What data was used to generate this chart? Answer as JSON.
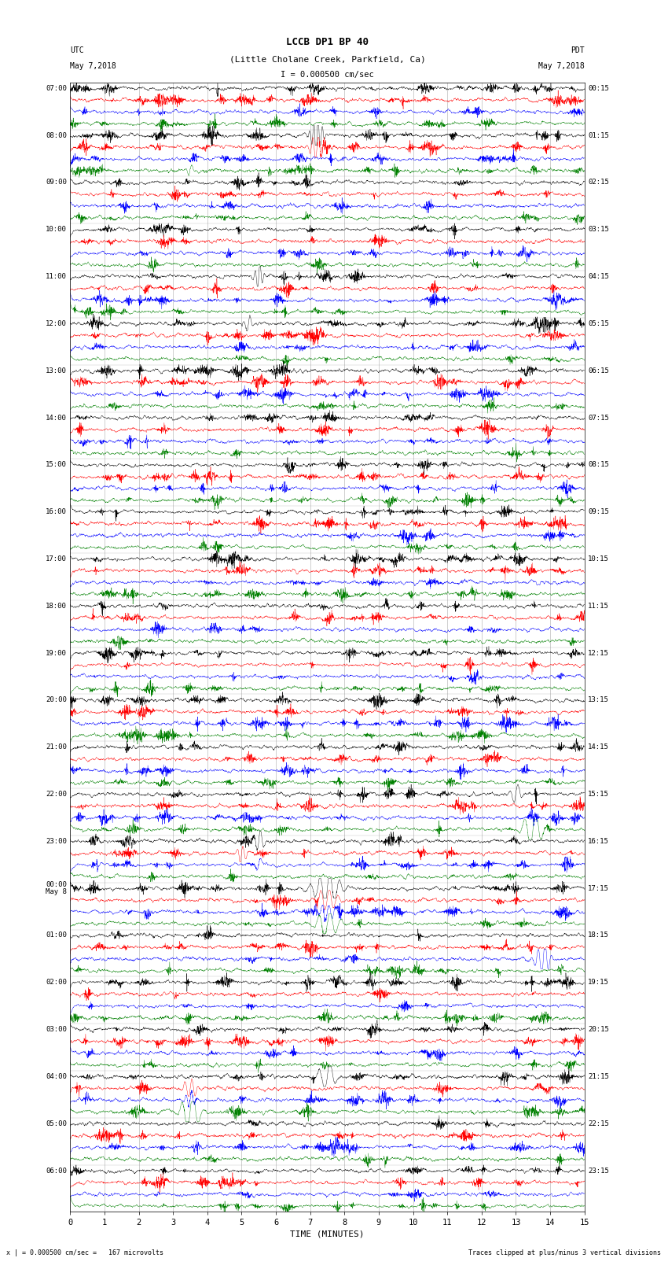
{
  "title_line1": "LCCB DP1 BP 40",
  "title_line2": "(Little Cholane Creek, Parkfield, Ca)",
  "scale_label": "I = 0.000500 cm/sec",
  "utc_label": "UTC",
  "utc_date": "May 7,2018",
  "pdt_label": "PDT",
  "pdt_date": "May 7,2018",
  "bottom_left": "x | = 0.000500 cm/sec =   167 microvolts",
  "bottom_right": "Traces clipped at plus/minus 3 vertical divisions",
  "xlabel": "TIME (MINUTES)",
  "colors": [
    "black",
    "red",
    "blue",
    "green"
  ],
  "bg_color": "white",
  "plot_bg_color": "white",
  "grid_color": "#888888",
  "trace_linewidth": 0.3,
  "fig_width": 8.5,
  "fig_height": 16.13,
  "n_traces_per_hour": 4,
  "minutes_per_row": 15,
  "total_rows": 96,
  "left_tick_hours": [
    "07:00",
    "08:00",
    "09:00",
    "10:00",
    "11:00",
    "12:00",
    "13:00",
    "14:00",
    "15:00",
    "16:00",
    "17:00",
    "18:00",
    "19:00",
    "20:00",
    "21:00",
    "22:00",
    "23:00",
    "May 8\n00:00",
    "01:00",
    "02:00",
    "03:00",
    "04:00",
    "05:00",
    "06:00"
  ],
  "right_tick_times": [
    "00:15",
    "01:15",
    "02:15",
    "03:15",
    "04:15",
    "05:15",
    "06:15",
    "07:15",
    "08:15",
    "09:15",
    "10:15",
    "11:15",
    "12:15",
    "13:15",
    "14:15",
    "15:15",
    "16:15",
    "17:15",
    "18:15",
    "19:15",
    "20:15",
    "21:15",
    "22:15",
    "23:15"
  ],
  "xmin": 0,
  "xmax": 15,
  "xticks": [
    0,
    1,
    2,
    3,
    4,
    5,
    6,
    7,
    8,
    9,
    10,
    11,
    12,
    13,
    14,
    15
  ]
}
